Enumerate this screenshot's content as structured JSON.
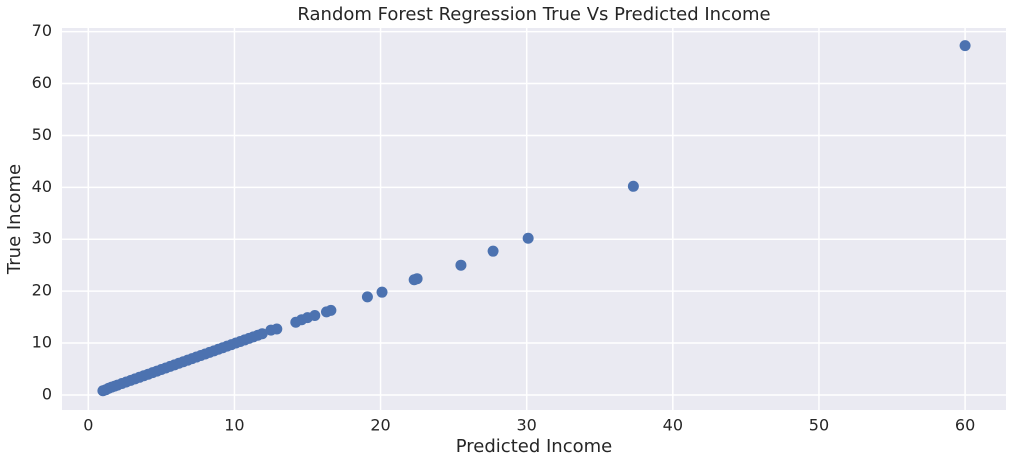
{
  "chart_data": {
    "type": "scatter",
    "title": "Random Forest Regression True Vs Predicted Income",
    "x_label": "Predicted Income",
    "y_label": "True Income",
    "color": "#4c72b0",
    "grid": true,
    "xlim": [
      -1.8,
      62.8
    ],
    "ylim": [
      -2.9,
      70.7
    ],
    "xticks": [
      0,
      10,
      20,
      30,
      40,
      50,
      60
    ],
    "yticks": [
      0,
      10,
      20,
      30,
      40,
      50,
      60,
      70
    ],
    "x": [
      1.0,
      1.2,
      1.4,
      1.6,
      1.8,
      2.0,
      2.3,
      2.6,
      2.9,
      3.2,
      3.5,
      3.8,
      4.1,
      4.4,
      4.7,
      5.0,
      5.3,
      5.6,
      5.9,
      6.2,
      6.5,
      6.8,
      7.1,
      7.4,
      7.7,
      8.0,
      8.3,
      8.6,
      8.9,
      9.2,
      9.5,
      9.8,
      10.1,
      10.4,
      10.7,
      11.0,
      11.3,
      11.6,
      11.9,
      12.5,
      12.9,
      14.2,
      14.6,
      15.0,
      15.5,
      16.3,
      16.6,
      19.1,
      20.1,
      22.3,
      22.5,
      25.5,
      27.7,
      30.1,
      37.3,
      60.0
    ],
    "values": [
      0.8,
      1.0,
      1.3,
      1.5,
      1.7,
      1.9,
      2.2,
      2.5,
      2.8,
      3.1,
      3.4,
      3.7,
      4.0,
      4.3,
      4.6,
      4.9,
      5.2,
      5.5,
      5.8,
      6.1,
      6.4,
      6.7,
      7.0,
      7.3,
      7.6,
      7.9,
      8.2,
      8.5,
      8.8,
      9.1,
      9.4,
      9.7,
      10.0,
      10.3,
      10.6,
      10.9,
      11.2,
      11.5,
      11.8,
      12.5,
      12.7,
      14.0,
      14.5,
      14.9,
      15.3,
      16.0,
      16.3,
      18.9,
      19.8,
      22.2,
      22.4,
      25.0,
      27.7,
      30.2,
      40.2,
      67.3
    ]
  }
}
